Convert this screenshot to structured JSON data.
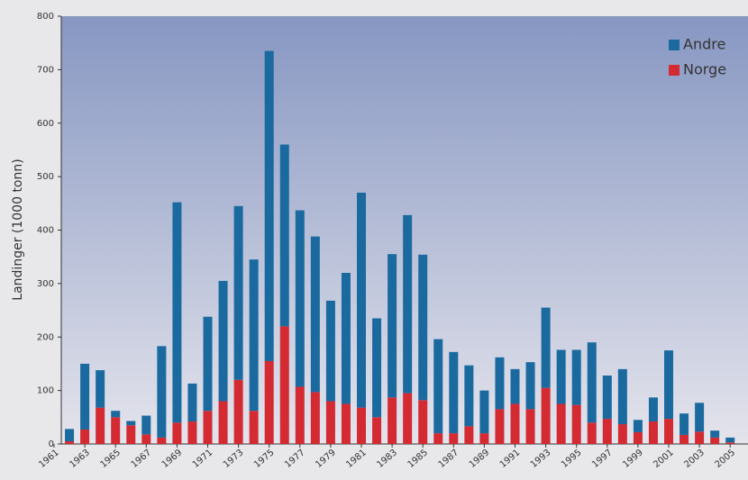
{
  "chart_data": {
    "type": "stacked_bar",
    "y_label": "Landinger (1000 tonn)",
    "categories": [
      "1961",
      null,
      "1963",
      null,
      "1965",
      null,
      "1967",
      null,
      "1969",
      null,
      "1971",
      null,
      "1973",
      null,
      "1975",
      null,
      "1977",
      null,
      "1979",
      null,
      "1981",
      null,
      "1983",
      null,
      "1985",
      null,
      "1987",
      null,
      "1989",
      null,
      "1991",
      null,
      "1993",
      null,
      "1995",
      null,
      "1997",
      null,
      "1999",
      null,
      "2001",
      null,
      "2003",
      null,
      "2005"
    ],
    "series": [
      {
        "name": "Norge",
        "color": "#d42a32",
        "values": [
          null,
          5,
          27,
          68,
          50,
          35,
          18,
          12,
          40,
          42,
          62,
          80,
          120,
          62,
          155,
          220,
          107,
          97,
          80,
          75,
          68,
          50,
          87,
          95,
          82,
          20,
          20,
          33,
          20,
          65,
          75,
          65,
          105,
          75,
          73,
          40,
          47,
          37,
          22,
          42,
          47,
          17,
          23,
          12,
          3
        ]
      },
      {
        "name": "Andre",
        "color": "#1a6aa0",
        "values": [
          null,
          23,
          123,
          70,
          12,
          8,
          35,
          171,
          412,
          71,
          176,
          225,
          325,
          283,
          580,
          340,
          330,
          291,
          188,
          245,
          402,
          185,
          268,
          333,
          272,
          176,
          152,
          114,
          80,
          97,
          65,
          88,
          150,
          101,
          103,
          150,
          81,
          103,
          23,
          45,
          128,
          40,
          54,
          13,
          9
        ]
      }
    ],
    "ylim": [
      0,
      800
    ],
    "yticks": [
      0,
      100,
      200,
      300,
      400,
      500,
      600,
      700,
      800
    ],
    "legend": "top-right"
  }
}
